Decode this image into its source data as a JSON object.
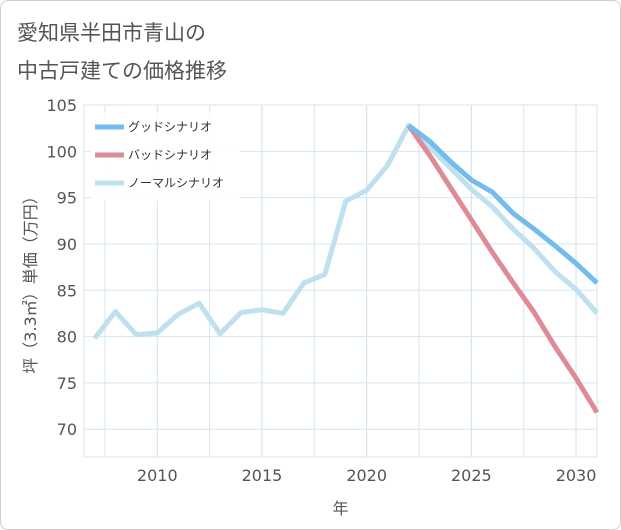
{
  "title": {
    "line1": "愛知県半田市青山の",
    "line2": "中古戸建ての価格推移"
  },
  "colors": {
    "good": "#74bcee",
    "bad": "#de8b97",
    "normal": "#bfe0ee",
    "grid": "#d5e6ef"
  },
  "chart_data": {
    "type": "line",
    "title": "愛知県半田市青山の中古戸建ての価格推移",
    "xlabel": "年",
    "ylabel": "坪（3.3㎡）単価（万円）",
    "xlim": [
      2006.5,
      2031
    ],
    "ylim": [
      67,
      105
    ],
    "x_ticks": [
      2010,
      2015,
      2020,
      2025,
      2030
    ],
    "y_ticks": [
      70,
      75,
      80,
      85,
      90,
      95,
      100,
      105
    ],
    "grid": true,
    "legend_position": "top-left",
    "series": [
      {
        "name": "グッドシナリオ",
        "color": "#74bcee",
        "x": [
          2022,
          2023,
          2024,
          2025,
          2026,
          2027,
          2028,
          2029,
          2030,
          2031
        ],
        "y": [
          102.8,
          101.1,
          98.9,
          96.9,
          95.6,
          93.3,
          91.6,
          89.8,
          87.9,
          85.8
        ]
      },
      {
        "name": "バッドシナリオ",
        "color": "#de8b97",
        "x": [
          2022,
          2023,
          2024,
          2025,
          2026,
          2027,
          2028,
          2029,
          2030,
          2031
        ],
        "y": [
          102.8,
          99.6,
          96.1,
          92.6,
          89.1,
          85.8,
          82.6,
          78.9,
          75.5,
          71.8
        ]
      },
      {
        "name": "ノーマルシナリオ",
        "color": "#bfe0ee",
        "x": [
          2007,
          2008,
          2009,
          2010,
          2011,
          2012,
          2013,
          2014,
          2015,
          2016,
          2017,
          2018,
          2019,
          2020,
          2021,
          2022,
          2023,
          2024,
          2025,
          2026,
          2027,
          2028,
          2029,
          2030,
          2031
        ],
        "y": [
          79.8,
          82.7,
          80.2,
          80.4,
          82.4,
          83.6,
          80.3,
          82.6,
          82.9,
          82.5,
          85.8,
          86.7,
          94.6,
          95.8,
          98.5,
          102.8,
          100.5,
          98.2,
          95.9,
          94.0,
          91.6,
          89.5,
          87.0,
          85.1,
          82.5
        ]
      }
    ]
  }
}
